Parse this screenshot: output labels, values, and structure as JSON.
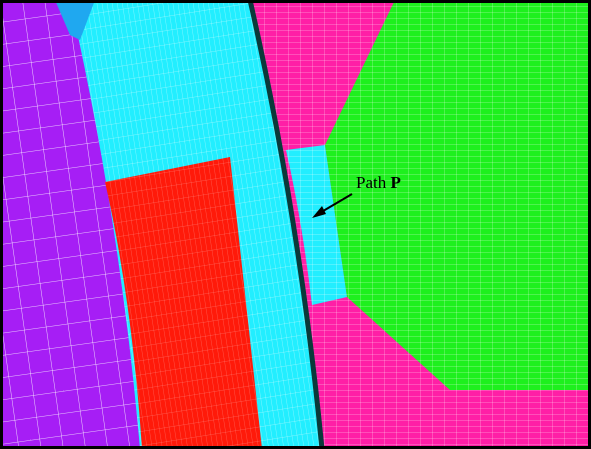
{
  "annotation": {
    "prefix": "Path",
    "symbol": "P"
  }
}
